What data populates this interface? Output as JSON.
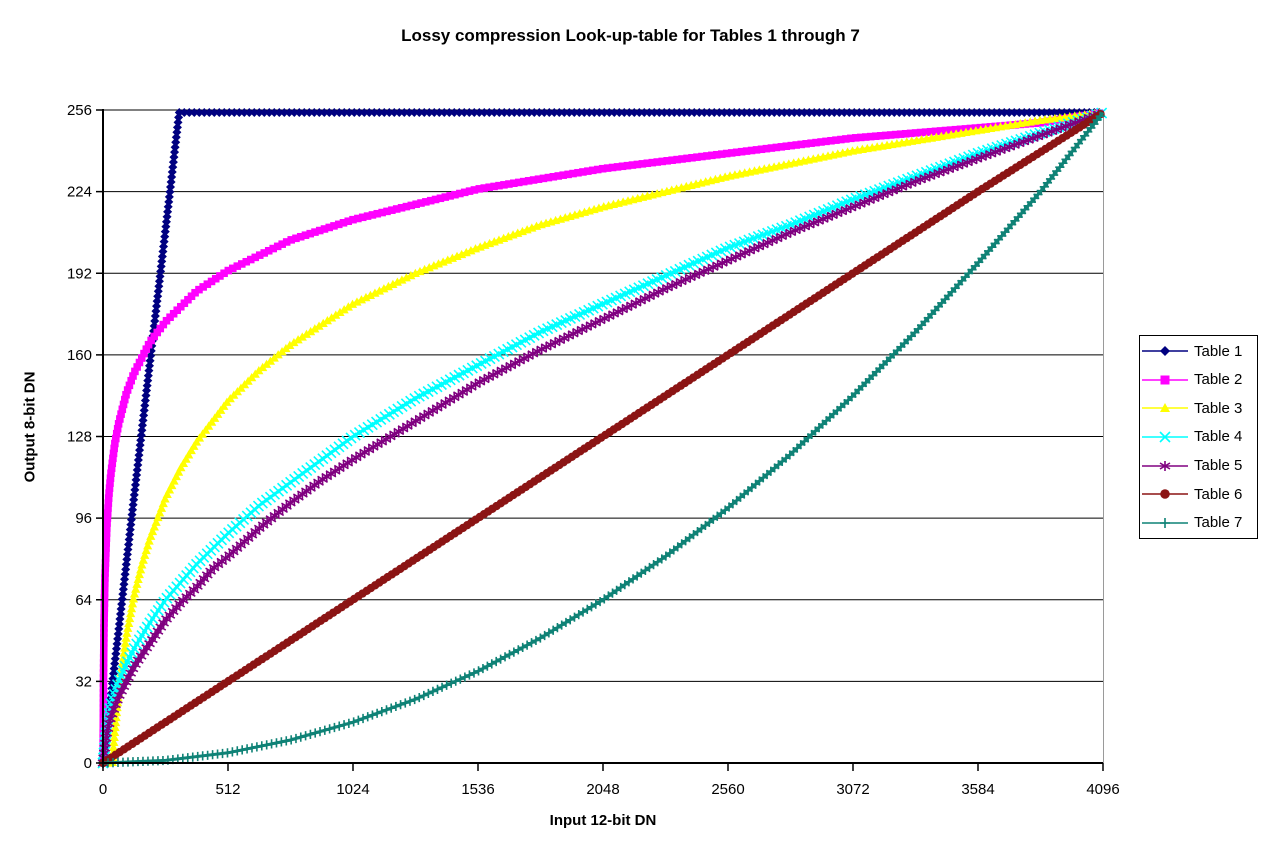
{
  "chart_data": {
    "type": "line",
    "title": "Lossy compression Look-up-table for Tables 1 through 7",
    "xlabel": "Input 12-bit DN",
    "ylabel": "Output 8-bit DN",
    "xlim": [
      0,
      4096
    ],
    "ylim": [
      0,
      256
    ],
    "x_ticks": [
      0,
      512,
      1024,
      1536,
      2048,
      2560,
      3072,
      3584,
      4096
    ],
    "y_ticks": [
      0,
      32,
      64,
      96,
      128,
      160,
      192,
      224,
      256
    ],
    "grid": "horizontal",
    "legend_position": "right",
    "series": [
      {
        "name": "Table 1",
        "color": "#000080",
        "marker": "diamond",
        "points": [
          [
            0,
            0
          ],
          [
            64,
            52
          ],
          [
            128,
            105
          ],
          [
            192,
            157
          ],
          [
            256,
            209
          ],
          [
            312,
            255
          ],
          [
            768,
            255
          ],
          [
            1536,
            255
          ],
          [
            2304,
            255
          ],
          [
            3072,
            255
          ],
          [
            4096,
            255
          ]
        ]
      },
      {
        "name": "Table 2",
        "color": "#FF00FF",
        "marker": "square",
        "points": [
          [
            0,
            0
          ],
          [
            1,
            13
          ],
          [
            2,
            33
          ],
          [
            4,
            53
          ],
          [
            8,
            73
          ],
          [
            16,
            93
          ],
          [
            24,
            105
          ],
          [
            32,
            113
          ],
          [
            48,
            125
          ],
          [
            64,
            133
          ],
          [
            96,
            145
          ],
          [
            128,
            153
          ],
          [
            192,
            165
          ],
          [
            256,
            173
          ],
          [
            320,
            179
          ],
          [
            384,
            185
          ],
          [
            448,
            189
          ],
          [
            512,
            193
          ],
          [
            640,
            199
          ],
          [
            768,
            205
          ],
          [
            896,
            209
          ],
          [
            1024,
            213
          ],
          [
            1280,
            219
          ],
          [
            1536,
            225
          ],
          [
            1792,
            229
          ],
          [
            2048,
            233
          ],
          [
            2304,
            236
          ],
          [
            2560,
            239
          ],
          [
            2816,
            242
          ],
          [
            3072,
            245
          ],
          [
            3328,
            247
          ],
          [
            3584,
            249
          ],
          [
            3840,
            251
          ],
          [
            4096,
            255
          ]
        ]
      },
      {
        "name": "Table 3",
        "color": "#FFFF00",
        "marker": "triangle",
        "points": [
          [
            0,
            0
          ],
          [
            38,
            0
          ],
          [
            48,
            12
          ],
          [
            64,
            28
          ],
          [
            96,
            50
          ],
          [
            128,
            66
          ],
          [
            160,
            78
          ],
          [
            192,
            88
          ],
          [
            224,
            96
          ],
          [
            256,
            104
          ],
          [
            320,
            116
          ],
          [
            384,
            126
          ],
          [
            448,
            134
          ],
          [
            512,
            142
          ],
          [
            640,
            154
          ],
          [
            768,
            164
          ],
          [
            896,
            172
          ],
          [
            1024,
            180
          ],
          [
            1280,
            192
          ],
          [
            1536,
            202
          ],
          [
            1792,
            211
          ],
          [
            2048,
            218
          ],
          [
            2304,
            224
          ],
          [
            2560,
            230
          ],
          [
            2816,
            235
          ],
          [
            3072,
            240
          ],
          [
            3328,
            244
          ],
          [
            3584,
            248
          ],
          [
            3840,
            252
          ],
          [
            4096,
            255
          ]
        ]
      },
      {
        "name": "Table 4",
        "color": "#00FFFF",
        "marker": "x",
        "points": [
          [
            0,
            0
          ],
          [
            16,
            16
          ],
          [
            32,
            23
          ],
          [
            64,
            32
          ],
          [
            96,
            39
          ],
          [
            128,
            45
          ],
          [
            192,
            55
          ],
          [
            256,
            64
          ],
          [
            320,
            71
          ],
          [
            384,
            78
          ],
          [
            448,
            84
          ],
          [
            512,
            90
          ],
          [
            640,
            101
          ],
          [
            768,
            110
          ],
          [
            896,
            119
          ],
          [
            1024,
            128
          ],
          [
            1280,
            143
          ],
          [
            1536,
            156
          ],
          [
            1792,
            169
          ],
          [
            2048,
            180
          ],
          [
            2304,
            191
          ],
          [
            2560,
            202
          ],
          [
            2816,
            211
          ],
          [
            3072,
            221
          ],
          [
            3328,
            230
          ],
          [
            3584,
            239
          ],
          [
            3840,
            247
          ],
          [
            4096,
            255
          ]
        ]
      },
      {
        "name": "Table 5",
        "color": "#800080",
        "marker": "star",
        "points": [
          [
            0,
            0
          ],
          [
            16,
            12
          ],
          [
            32,
            18
          ],
          [
            64,
            26
          ],
          [
            96,
            32
          ],
          [
            128,
            38
          ],
          [
            192,
            47
          ],
          [
            256,
            56
          ],
          [
            320,
            63
          ],
          [
            384,
            69
          ],
          [
            448,
            76
          ],
          [
            512,
            81
          ],
          [
            640,
            92
          ],
          [
            768,
            102
          ],
          [
            896,
            111
          ],
          [
            1024,
            119
          ],
          [
            1280,
            134
          ],
          [
            1536,
            149
          ],
          [
            1792,
            162
          ],
          [
            2048,
            174
          ],
          [
            2304,
            186
          ],
          [
            2560,
            197
          ],
          [
            2816,
            208
          ],
          [
            3072,
            218
          ],
          [
            3328,
            228
          ],
          [
            3584,
            237
          ],
          [
            3840,
            246
          ],
          [
            4096,
            255
          ]
        ]
      },
      {
        "name": "Table 6",
        "color": "#8B1414",
        "marker": "circle",
        "points": [
          [
            0,
            0
          ],
          [
            512,
            32
          ],
          [
            1024,
            64
          ],
          [
            1536,
            96
          ],
          [
            2048,
            128
          ],
          [
            2560,
            160
          ],
          [
            3072,
            192
          ],
          [
            3584,
            224
          ],
          [
            4096,
            255
          ]
        ]
      },
      {
        "name": "Table 7",
        "color": "#0F8276",
        "marker": "plus",
        "points": [
          [
            0,
            0
          ],
          [
            256,
            1
          ],
          [
            512,
            4
          ],
          [
            768,
            9
          ],
          [
            1024,
            16
          ],
          [
            1280,
            25
          ],
          [
            1536,
            36
          ],
          [
            1792,
            49
          ],
          [
            2048,
            64
          ],
          [
            2304,
            81
          ],
          [
            2560,
            100
          ],
          [
            2816,
            121
          ],
          [
            3072,
            144
          ],
          [
            3328,
            169
          ],
          [
            3584,
            196
          ],
          [
            3840,
            224
          ],
          [
            4096,
            255
          ]
        ]
      }
    ]
  }
}
